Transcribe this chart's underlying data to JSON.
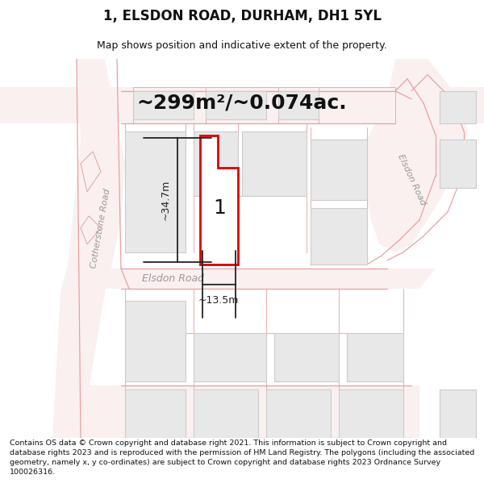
{
  "title": "1, ELSDON ROAD, DURHAM, DH1 5YL",
  "subtitle": "Map shows position and indicative extent of the property.",
  "area_label": "~299m²/~0.074ac.",
  "width_label": "~13.5m",
  "height_label": "~34.7m",
  "plot_number": "1",
  "road_label_h": "Elsdon Road",
  "road_label_left": "Cotherstone Road",
  "road_label_right": "Elsdon Road",
  "footer": "Contains OS data © Crown copyright and database right 2021. This information is subject to Crown copyright and database rights 2023 and is reproduced with the permission of HM Land Registry. The polygons (including the associated geometry, namely x, y co-ordinates) are subject to Crown copyright and database rights 2023 Ordnance Survey 100026316.",
  "map_bg": "#ffffff",
  "road_fill": "#f5e8e8",
  "road_line": "#e8a0a0",
  "block_fill": "#e8e8e8",
  "block_edge": "#cccccc",
  "highlight": "#dd0000",
  "dim_line": "#222222",
  "text_dark": "#111111",
  "road_text": "#aaaaaa",
  "title_size": 12,
  "subtitle_size": 9,
  "footer_size": 6.8
}
